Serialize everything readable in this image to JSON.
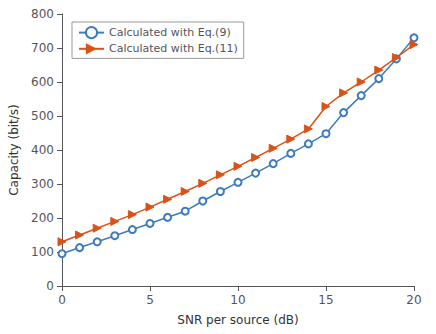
{
  "chart_data": {
    "type": "line",
    "xlabel": "SNR per source (dB)",
    "ylabel": "Capacity (bit/s)",
    "x": [
      0,
      1,
      2,
      3,
      4,
      5,
      6,
      7,
      8,
      9,
      10,
      11,
      12,
      13,
      14,
      15,
      16,
      17,
      18,
      19,
      20
    ],
    "series": [
      {
        "name": "Calculated with Eq.(9)",
        "color": "#3d7bbf",
        "marker": "circle",
        "values": [
          95,
          113,
          130,
          148,
          166,
          184,
          202,
          220,
          250,
          278,
          305,
          332,
          360,
          390,
          418,
          448,
          510,
          560,
          610,
          668,
          730
        ]
      },
      {
        "name": "Calculated with Eq.(11)",
        "color": "#d95319",
        "marker": "triangle_right",
        "values": [
          130,
          150,
          170,
          190,
          210,
          232,
          255,
          278,
          302,
          327,
          352,
          378,
          405,
          432,
          462,
          528,
          568,
          600,
          635,
          672,
          710
        ]
      }
    ],
    "xlim": [
      0,
      20
    ],
    "xticks": [
      0,
      5,
      10,
      15,
      20
    ],
    "ylim": [
      0,
      800
    ],
    "yticks": [
      0,
      100,
      200,
      300,
      400,
      500,
      600,
      700,
      800
    ],
    "grid": false,
    "legend": "upper left"
  }
}
